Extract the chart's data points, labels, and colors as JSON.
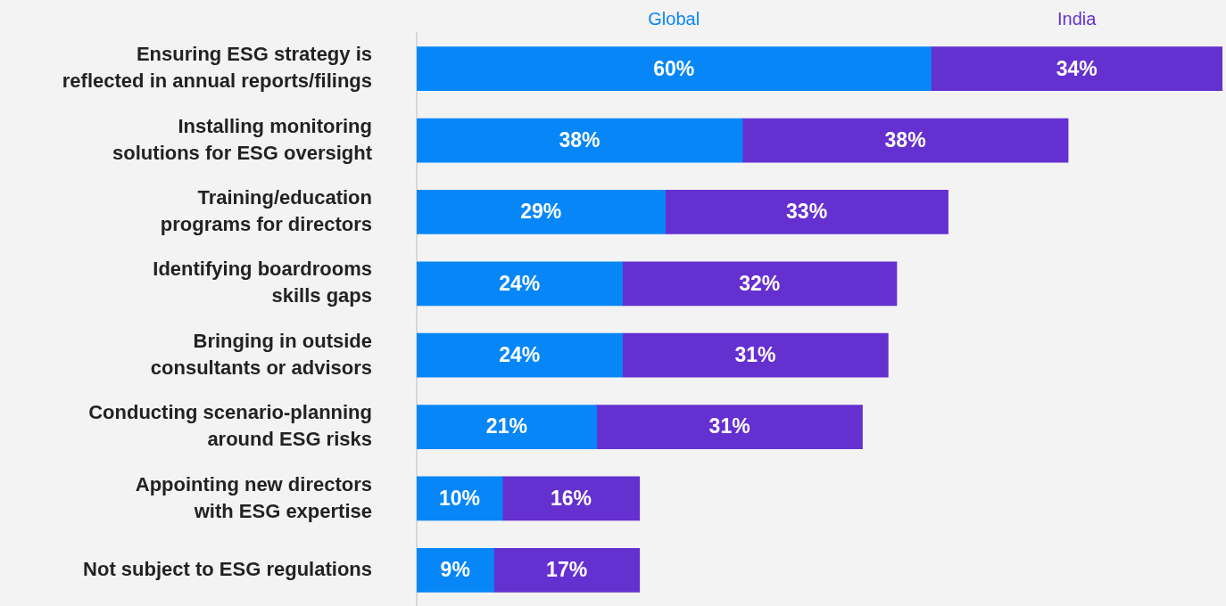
{
  "chart_data": {
    "type": "bar",
    "orientation": "horizontal",
    "stacked": true,
    "data_labels": true,
    "grid": false,
    "legend": "top",
    "tick_labels": "y",
    "categories": [
      "Ensuring ESG strategy is reflected in annual reports/filings",
      "Installing monitoring solutions for ESG oversight",
      "Training/education programs for directors",
      "Identifying boardrooms skills gaps",
      "Bringing in outside consultants or advisors",
      "Conducting scenario-planning around ESG risks",
      "Appointing new directors with ESG expertise",
      "Not subject to ESG regulations"
    ],
    "series": [
      {
        "name": "Global",
        "color": "#0787f7",
        "values": [
          60,
          38,
          29,
          24,
          24,
          21,
          10,
          9
        ],
        "value_labels": [
          "60%",
          "38%",
          "29%",
          "24%",
          "24%",
          "21%",
          "10%",
          "9%"
        ]
      },
      {
        "name": "India",
        "color": "#6530d0",
        "values": [
          34,
          38,
          33,
          32,
          31,
          31,
          16,
          17
        ],
        "value_labels": [
          "34%",
          "38%",
          "33%",
          "32%",
          "31%",
          "31%",
          "16%",
          "17%"
        ]
      }
    ]
  }
}
